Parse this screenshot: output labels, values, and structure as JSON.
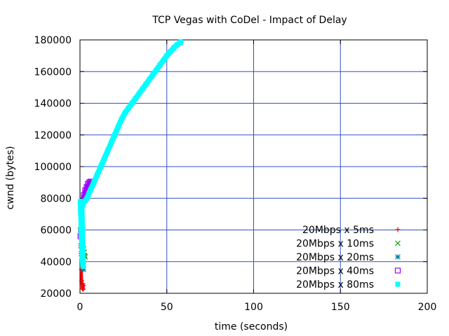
{
  "chart_data": {
    "type": "scatter",
    "title": "TCP Vegas with CoDel - Impact of Delay",
    "xlabel": "time (seconds)",
    "ylabel": "cwnd (bytes)",
    "xlim": [
      0,
      200
    ],
    "ylim": [
      20000,
      180000
    ],
    "x_ticks": [
      0,
      50,
      100,
      150,
      200
    ],
    "y_ticks": [
      20000,
      40000,
      60000,
      80000,
      100000,
      120000,
      140000,
      160000,
      180000
    ],
    "grid": true,
    "legend_position": "bottom-right",
    "series": [
      {
        "name": "20Mbps x 5ms",
        "marker": "+",
        "color": "#ff0000",
        "points": [
          [
            0.2,
            76000
          ],
          [
            0.4,
            60000
          ],
          [
            0.6,
            45000
          ],
          [
            0.8,
            35000
          ],
          [
            1.0,
            28000
          ],
          [
            1.2,
            24000
          ],
          [
            1.4,
            23000
          ],
          [
            1.6,
            26000
          ],
          [
            1.8,
            22500
          ],
          [
            2.0,
            25000
          ]
        ]
      },
      {
        "name": "20Mbps x 10ms",
        "marker": "x",
        "color": "#00a000",
        "points": [
          [
            0.3,
            74000
          ],
          [
            0.6,
            62000
          ],
          [
            0.9,
            55000
          ],
          [
            1.2,
            50000
          ],
          [
            1.5,
            47000
          ],
          [
            1.8,
            45000
          ],
          [
            2.1,
            48000
          ],
          [
            2.4,
            46000
          ],
          [
            2.7,
            44000
          ],
          [
            3.0,
            43000
          ]
        ]
      },
      {
        "name": "20Mbps x 20ms",
        "marker": "*",
        "color": "#0080a0",
        "points": [
          [
            0.2,
            60000
          ],
          [
            0.5,
            50000
          ],
          [
            0.8,
            45000
          ],
          [
            1.1,
            40000
          ],
          [
            1.4,
            38000
          ],
          [
            1.7,
            36000
          ],
          [
            2.0,
            35000
          ]
        ]
      },
      {
        "name": "20Mbps x 40ms",
        "marker": "square-open",
        "color": "#a000ff",
        "points": [
          [
            0.3,
            56000
          ],
          [
            0.8,
            70000
          ],
          [
            1.5,
            78000
          ],
          [
            2.2,
            82000
          ],
          [
            3.0,
            85000
          ],
          [
            3.8,
            87000
          ],
          [
            4.5,
            89000
          ],
          [
            5.3,
            90000
          ],
          [
            6.0,
            90500
          ]
        ]
      },
      {
        "name": "20Mbps x 80ms",
        "marker": "square-filled",
        "color": "#00ffff",
        "points": [
          [
            0.3,
            78000
          ],
          [
            0.6,
            70000
          ],
          [
            0.9,
            60000
          ],
          [
            1.2,
            50000
          ],
          [
            1.5,
            42000
          ],
          [
            1.8,
            37000
          ],
          [
            1.0,
            74000
          ],
          [
            2.0,
            77000
          ],
          [
            4.0,
            80000
          ],
          [
            6.0,
            85000
          ],
          [
            8.0,
            90000
          ],
          [
            10,
            95000
          ],
          [
            12,
            100000
          ],
          [
            14,
            105000
          ],
          [
            16,
            110000
          ],
          [
            18,
            115000
          ],
          [
            20,
            120000
          ],
          [
            22,
            125000
          ],
          [
            24,
            130000
          ],
          [
            26,
            134000
          ],
          [
            28,
            137000
          ],
          [
            30,
            140000
          ],
          [
            32,
            143000
          ],
          [
            34,
            146000
          ],
          [
            36,
            149000
          ],
          [
            38,
            152000
          ],
          [
            40,
            155000
          ],
          [
            42,
            158000
          ],
          [
            44,
            161000
          ],
          [
            46,
            164000
          ],
          [
            48,
            167000
          ],
          [
            50,
            170000
          ],
          [
            52,
            172500
          ],
          [
            54,
            175000
          ],
          [
            56,
            177000
          ],
          [
            58,
            178500
          ]
        ]
      }
    ]
  }
}
